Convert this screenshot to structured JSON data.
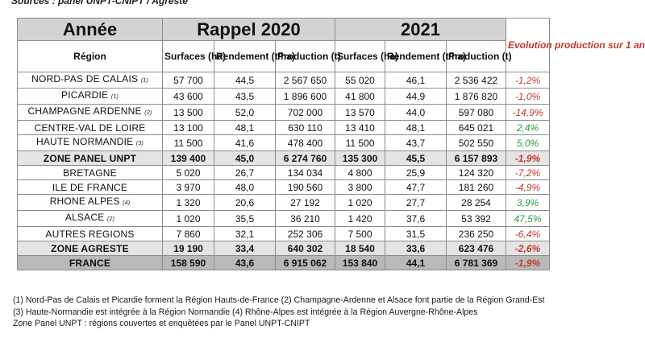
{
  "source": "Sources : panel UNPT-CNIPT / Agreste",
  "header": {
    "annee": "Année",
    "rappel": "Rappel 2020",
    "year2021": "2021",
    "evolution": "Evolution production sur 1 an",
    "region": "Région",
    "surfaces": "Surfaces (ha)",
    "rendement": "Rendement (t/ha)",
    "production": "Production (t)"
  },
  "rows": [
    {
      "region": "NORD-PAS DE CALAIS",
      "note": "(1)",
      "s2020": "57 700",
      "r2020": "44,5",
      "p2020": "2 567 650",
      "s2021": "55 020",
      "r2021": "46,1",
      "p2021": "2 536 422",
      "evo": "-1,2%",
      "sign": "neg",
      "style": "normal"
    },
    {
      "region": "PICARDIE",
      "note": "(1)",
      "s2020": "43 600",
      "r2020": "43,5",
      "p2020": "1 896 600",
      "s2021": "41 800",
      "r2021": "44,9",
      "p2021": "1 876 820",
      "evo": "-1,0%",
      "sign": "neg",
      "style": "normal"
    },
    {
      "region": "CHAMPAGNE ARDENNE",
      "note": "(2)",
      "s2020": "13 500",
      "r2020": "52,0",
      "p2020": "702 000",
      "s2021": "13 570",
      "r2021": "44,0",
      "p2021": "597 080",
      "evo": "-14,9%",
      "sign": "neg",
      "style": "normal"
    },
    {
      "region": "CENTRE-VAL DE LOIRE",
      "note": "",
      "s2020": "13 100",
      "r2020": "48,1",
      "p2020": "630 110",
      "s2021": "13 410",
      "r2021": "48,1",
      "p2021": "645 021",
      "evo": "2,4%",
      "sign": "pos",
      "style": "normal"
    },
    {
      "region": "HAUTE NORMANDIE",
      "note": "(3)",
      "s2020": "11 500",
      "r2020": "41,6",
      "p2020": "478 400",
      "s2021": "11 500",
      "r2021": "43,7",
      "p2021": "502 550",
      "evo": "5,0%",
      "sign": "pos",
      "style": "normal"
    },
    {
      "region": "ZONE PANEL UNPT",
      "note": "",
      "s2020": "139 400",
      "r2020": "45,0",
      "p2020": "6 274 760",
      "s2021": "135 300",
      "r2021": "45,5",
      "p2021": "6 157 893",
      "evo": "-1,9%",
      "sign": "neg",
      "style": "total"
    },
    {
      "region": "BRETAGNE",
      "note": "",
      "s2020": "5 020",
      "r2020": "26,7",
      "p2020": "134 034",
      "s2021": "4 800",
      "r2021": "25,9",
      "p2021": "124 320",
      "evo": "-7,2%",
      "sign": "neg",
      "style": "normal"
    },
    {
      "region": "ILE DE FRANCE",
      "note": "",
      "s2020": "3 970",
      "r2020": "48,0",
      "p2020": "190 560",
      "s2021": "3 800",
      "r2021": "47,7",
      "p2021": "181 260",
      "evo": "-4,9%",
      "sign": "neg",
      "style": "normal"
    },
    {
      "region": "RHONE ALPES",
      "note": "(4)",
      "s2020": "1 320",
      "r2020": "20,6",
      "p2020": "27 192",
      "s2021": "1 020",
      "r2021": "27,7",
      "p2021": "28 254",
      "evo": "3,9%",
      "sign": "pos",
      "style": "normal"
    },
    {
      "region": "ALSACE",
      "note": "(2)",
      "s2020": "1 020",
      "r2020": "35,5",
      "p2020": "36 210",
      "s2021": "1 420",
      "r2021": "37,6",
      "p2021": "53 392",
      "evo": "47,5%",
      "sign": "pos",
      "style": "normal"
    },
    {
      "region": "AUTRES REGIONS",
      "note": "",
      "s2020": "7 860",
      "r2020": "32,1",
      "p2020": "252 306",
      "s2021": "7 500",
      "r2021": "31,5",
      "p2021": "236 250",
      "evo": "-6,4%",
      "sign": "neg",
      "style": "normal"
    },
    {
      "region": "ZONE AGRESTE",
      "note": "",
      "s2020": "19 190",
      "r2020": "33,4",
      "p2020": "640 302",
      "s2021": "18 540",
      "r2021": "33,6",
      "p2021": "623 476",
      "evo": "-2,6%",
      "sign": "neg",
      "style": "total2"
    },
    {
      "region": "FRANCE",
      "note": "",
      "s2020": "158 590",
      "r2020": "43,6",
      "p2020": "6 915 062",
      "s2021": "153 840",
      "r2021": "44,1",
      "p2021": "6 781 369",
      "evo": "-1,9%",
      "sign": "neg",
      "style": "france"
    }
  ],
  "footnotes": [
    "(1) Nord-Pas de Calais et Picardie forment la Région Hauts-de-France (2) Champagne-Ardenne et Alsace font partie de la Région Grand-Est",
    "(3) Haute-Normandie est intégrée à la Région Normandie (4) Rhône-Alpes est intégrée à la Région Auvergne-Rhône-Alpes",
    "Zone Panel UNPT : régions couvertes et enquêtées par le Panel UNPT-CNIPT"
  ],
  "colors": {
    "negative": "#c0392b",
    "positive": "#2e9a3e",
    "total_bg": "#e4e4e4",
    "france_bg": "#b9b9b9",
    "header_bg": "#d3d3d3"
  }
}
